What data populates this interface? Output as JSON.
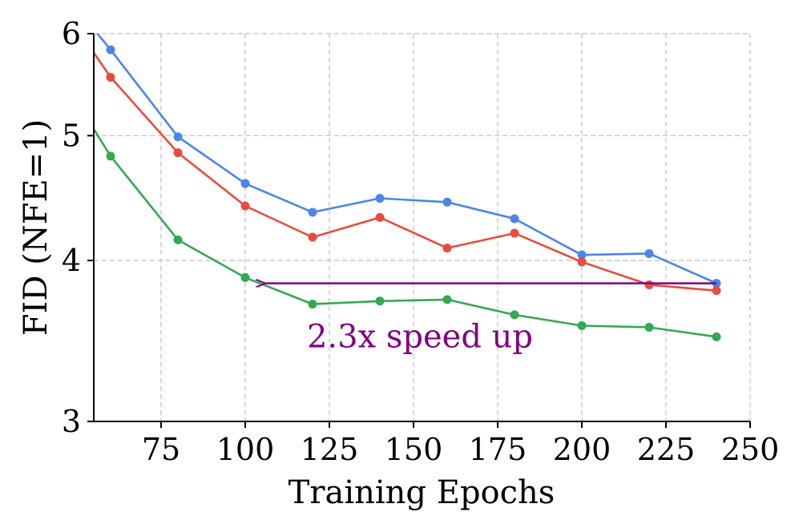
{
  "chart_data": {
    "type": "line",
    "title": "",
    "xlabel": "Training Epochs",
    "ylabel": "FID (NFE=1)",
    "yscale": "log",
    "xlim": [
      55,
      250
    ],
    "ylim": [
      3,
      6
    ],
    "grid": true,
    "x_ticks": [
      {
        "value": 75,
        "label": "75"
      },
      {
        "value": 100,
        "label": "100"
      },
      {
        "value": 125,
        "label": "125"
      },
      {
        "value": 150,
        "label": "150"
      },
      {
        "value": 175,
        "label": "175"
      },
      {
        "value": 200,
        "label": "200"
      },
      {
        "value": 225,
        "label": "225"
      },
      {
        "value": 250,
        "label": "250"
      }
    ],
    "y_ticks": [
      {
        "value": 3,
        "label": "3"
      },
      {
        "value": 4,
        "label": "4"
      },
      {
        "value": 5,
        "label": "5"
      },
      {
        "value": 6,
        "label": "6"
      }
    ],
    "series": [
      {
        "name": "blue",
        "color": "#4a86e8",
        "points": [
          [
            55,
            6.05
          ],
          [
            60,
            5.83
          ],
          [
            80,
            4.99
          ],
          [
            100,
            4.59
          ],
          [
            120,
            4.36
          ],
          [
            140,
            4.47
          ],
          [
            160,
            4.44
          ],
          [
            180,
            4.31
          ],
          [
            200,
            4.04
          ],
          [
            220,
            4.05
          ],
          [
            240,
            3.84
          ]
        ]
      },
      {
        "name": "red",
        "color": "#e74c3c",
        "points": [
          [
            55,
            5.8
          ],
          [
            60,
            5.55
          ],
          [
            80,
            4.85
          ],
          [
            100,
            4.41
          ],
          [
            120,
            4.17
          ],
          [
            140,
            4.32
          ],
          [
            160,
            4.09
          ],
          [
            180,
            4.2
          ],
          [
            200,
            3.99
          ],
          [
            220,
            3.83
          ],
          [
            240,
            3.79
          ]
        ]
      },
      {
        "name": "green",
        "color": "#34a853",
        "points": [
          [
            55,
            5.06
          ],
          [
            60,
            4.82
          ],
          [
            80,
            4.15
          ],
          [
            100,
            3.88
          ],
          [
            120,
            3.7
          ],
          [
            140,
            3.72
          ],
          [
            160,
            3.73
          ],
          [
            180,
            3.63
          ],
          [
            200,
            3.56
          ],
          [
            220,
            3.55
          ],
          [
            240,
            3.49
          ]
        ]
      }
    ],
    "annotation": {
      "text": "2.3x speed up",
      "color": "#800080",
      "text_anchor_data": [
        150,
        3.55
      ],
      "arrow_from": [
        240,
        3.84
      ],
      "arrow_to": [
        105,
        3.84
      ]
    }
  }
}
